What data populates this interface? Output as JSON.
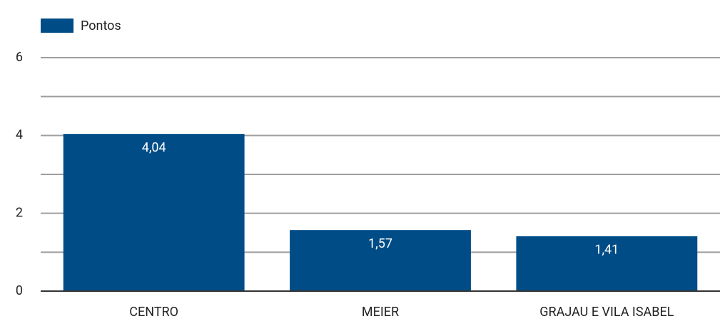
{
  "chart_data": {
    "type": "bar",
    "legend": "Pontos",
    "categories": [
      "CENTRO",
      "MEIER",
      "GRAJAU E VILA ISABEL"
    ],
    "values": [
      4.04,
      1.57,
      1.41
    ],
    "value_labels": [
      "4,04",
      "1,57",
      "1,41"
    ],
    "color": "#004c86",
    "ylim": [
      0,
      6
    ],
    "yticks": [
      0,
      2,
      4,
      6
    ],
    "minor_yticks": [
      1,
      3,
      5
    ],
    "grid": true
  }
}
